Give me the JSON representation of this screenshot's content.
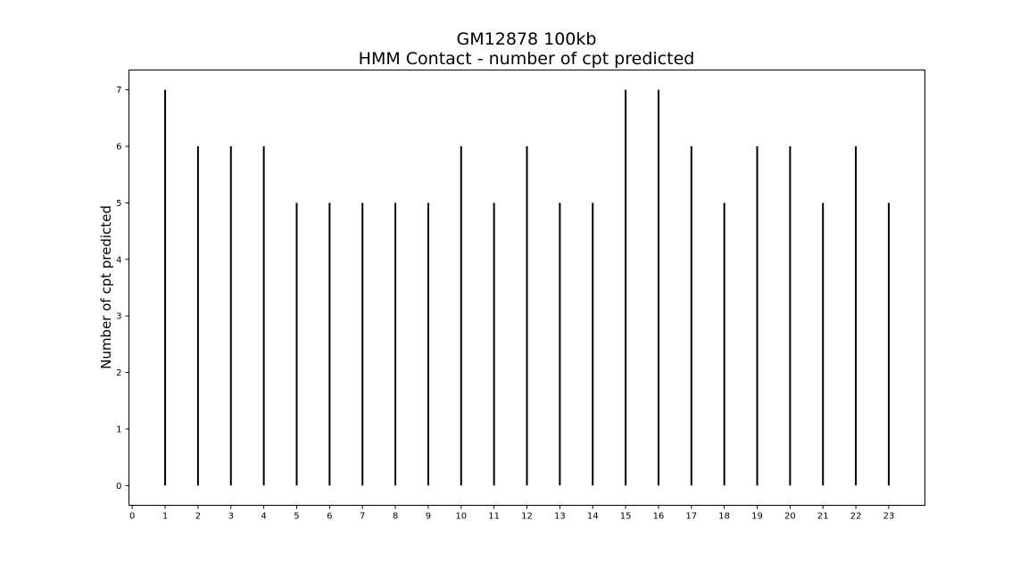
{
  "chart_data": {
    "type": "bar",
    "title": "GM12878 100kb",
    "subtitle": "HMM Contact - number of cpt predicted",
    "xlabel": "",
    "ylabel": "Number of cpt predicted",
    "xlim": [
      -0.1,
      24.1
    ],
    "ylim": [
      -0.35,
      7.35
    ],
    "x_ticks": [
      0,
      1,
      2,
      3,
      4,
      5,
      6,
      7,
      8,
      9,
      10,
      11,
      12,
      13,
      14,
      15,
      16,
      17,
      18,
      19,
      20,
      21,
      22,
      23
    ],
    "y_ticks": [
      0,
      1,
      2,
      3,
      4,
      5,
      6,
      7
    ],
    "categories": [
      "1",
      "2",
      "3",
      "4",
      "5",
      "6",
      "7",
      "8",
      "9",
      "10",
      "11",
      "12",
      "13",
      "14",
      "15",
      "16",
      "17",
      "18",
      "19",
      "20",
      "21",
      "22",
      "23"
    ],
    "x": [
      1,
      2,
      3,
      4,
      5,
      6,
      7,
      8,
      9,
      10,
      11,
      12,
      13,
      14,
      15,
      16,
      17,
      18,
      19,
      20,
      21,
      22,
      23
    ],
    "values": [
      7,
      6,
      6,
      6,
      5,
      5,
      5,
      5,
      5,
      6,
      5,
      6,
      5,
      5,
      7,
      7,
      6,
      5,
      6,
      6,
      5,
      6,
      5
    ],
    "grid": false,
    "legend": "none",
    "bar_color": "#000000"
  }
}
